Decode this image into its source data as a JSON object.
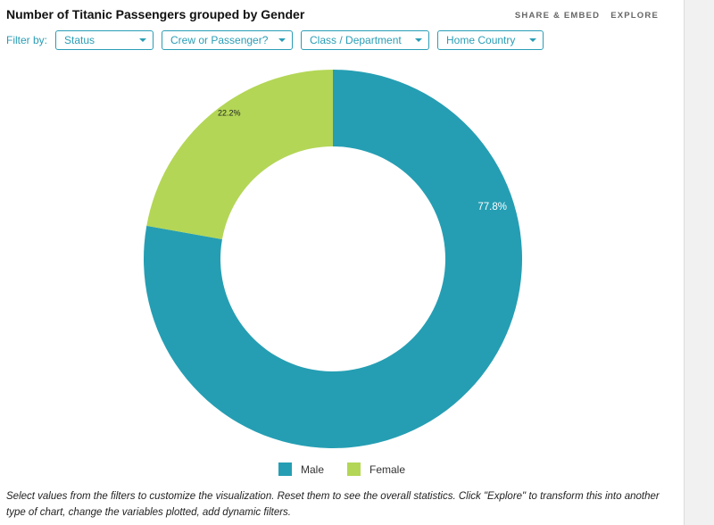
{
  "title": "Number of Titanic Passengers grouped by Gender",
  "actions": {
    "share_embed": "SHARE & EMBED",
    "explore": "EXPLORE"
  },
  "filter_label": "Filter by:",
  "filters": [
    {
      "label": "Status",
      "icon": "chevron-down-icon"
    },
    {
      "label": "Crew or Passenger?",
      "icon": "chevron-down-icon"
    },
    {
      "label": "Class / Department",
      "icon": "chevron-down-icon"
    },
    {
      "label": "Home Country",
      "icon": "chevron-down-icon"
    }
  ],
  "footer_note": "Select values from the filters to customize the visualization. Reset them to see the overall statistics. Click \"Explore\" to transform this into another type of chart, change the variables plotted, add dynamic filters.",
  "colors": {
    "male": "#259eb3",
    "female": "#b3d656",
    "accent": "#2a9db5"
  },
  "chart_data": {
    "type": "pie",
    "donut": true,
    "title": "Number of Titanic Passengers grouped by Gender",
    "slices": [
      {
        "label": "Male",
        "percent": 77.8,
        "label_text": "77.8%",
        "color": "#259eb3"
      },
      {
        "label": "Female",
        "percent": 22.2,
        "label_text": "22.2%",
        "color": "#b3d656"
      }
    ],
    "legend": {
      "position": "bottom",
      "entries": [
        "Male",
        "Female"
      ]
    }
  }
}
